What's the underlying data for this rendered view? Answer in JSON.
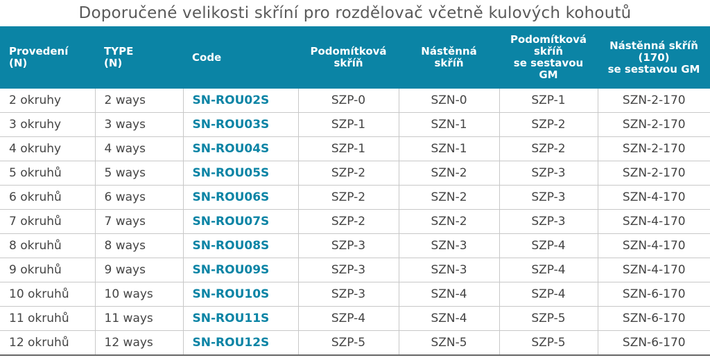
{
  "title": "Doporučené velikosti skříní pro rozdělovač včetně kulových kohoutů",
  "colors": {
    "header_bg": "#0b84a5",
    "code_text": "#0b84a5"
  },
  "headers": [
    [
      "Provedení",
      "(N)"
    ],
    [
      "TYPE",
      "(N)"
    ],
    [
      "Code"
    ],
    [
      "Podomítková",
      "skříň"
    ],
    [
      "Nástěnná",
      "skříň"
    ],
    [
      "Podomítková",
      "skříň",
      "se sestavou",
      "GM"
    ],
    [
      "Nástěnná skříň",
      "(170)",
      "se sestavou GM"
    ]
  ],
  "rows": [
    [
      "2 okruhy",
      "2 ways",
      "SN-ROU02S",
      "SZP-0",
      "SZN-0",
      "SZP-1",
      "SZN-2-170"
    ],
    [
      "3 okruhy",
      "3 ways",
      "SN-ROU03S",
      "SZP-1",
      "SZN-1",
      "SZP-2",
      "SZN-2-170"
    ],
    [
      "4 okruhy",
      "4 ways",
      "SN-ROU04S",
      "SZP-1",
      "SZN-1",
      "SZP-2",
      "SZN-2-170"
    ],
    [
      "5 okruhů",
      "5 ways",
      "SN-ROU05S",
      "SZP-2",
      "SZN-2",
      "SZP-3",
      "SZN-2-170"
    ],
    [
      "6 okruhů",
      "6 ways",
      "SN-ROU06S",
      "SZP-2",
      "SZN-2",
      "SZP-3",
      "SZN-4-170"
    ],
    [
      "7 okruhů",
      "7 ways",
      "SN-ROU07S",
      "SZP-2",
      "SZN-2",
      "SZP-3",
      "SZN-4-170"
    ],
    [
      "8 okruhů",
      "8 ways",
      "SN-ROU08S",
      "SZP-3",
      "SZN-3",
      "SZP-4",
      "SZN-4-170"
    ],
    [
      "9 okruhů",
      "9 ways",
      "SN-ROU09S",
      "SZP-3",
      "SZN-3",
      "SZP-4",
      "SZN-4-170"
    ],
    [
      "10 okruhů",
      "10 ways",
      "SN-ROU10S",
      "SZP-3",
      "SZN-4",
      "SZP-4",
      "SZN-6-170"
    ],
    [
      "11 okruhů",
      "11 ways",
      "SN-ROU11S",
      "SZP-4",
      "SZN-4",
      "SZP-5",
      "SZN-6-170"
    ],
    [
      "12 okruhů",
      "12 ways",
      "SN-ROU12S",
      "SZP-5",
      "SZN-5",
      "SZP-5",
      "SZN-6-170"
    ]
  ]
}
